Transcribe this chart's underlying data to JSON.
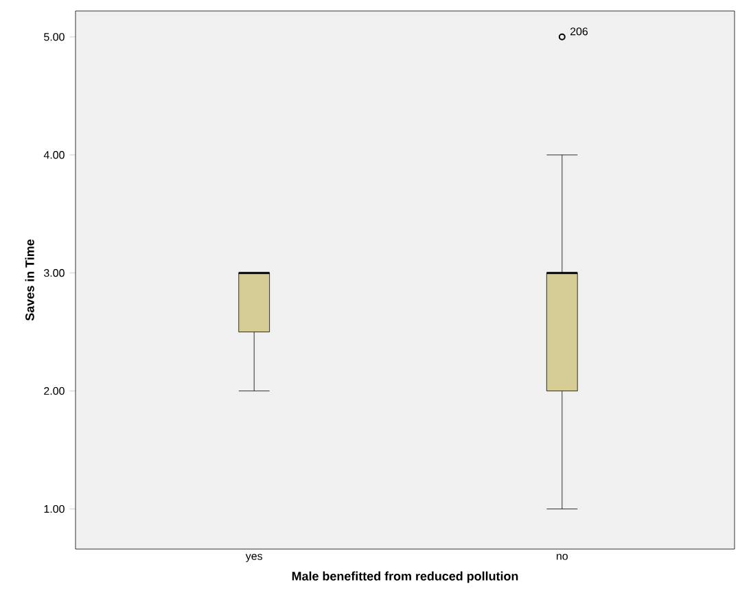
{
  "chart_data": {
    "type": "box",
    "xlabel": "Male benefitted from reduced pollution",
    "ylabel": "Saves in Time",
    "categories": [
      "yes",
      "no"
    ],
    "boxes": [
      {
        "low": 2,
        "q1": 2.5,
        "median": 3,
        "q3": 3,
        "high": 3
      },
      {
        "low": 1,
        "q1": 2,
        "median": 3,
        "q3": 3,
        "high": 4,
        "outliers": [
          5
        ]
      }
    ],
    "color": "#d4cc94",
    "ylim": [
      0.66,
      5.22
    ],
    "yticks": [
      {
        "value": 1,
        "label": "1.00"
      },
      {
        "value": 2,
        "label": "2.00"
      },
      {
        "value": 3,
        "label": "3.00"
      },
      {
        "value": 4,
        "label": "4.00"
      },
      {
        "value": 5,
        "label": "5.00"
      }
    ],
    "annotations": [
      "206"
    ]
  }
}
